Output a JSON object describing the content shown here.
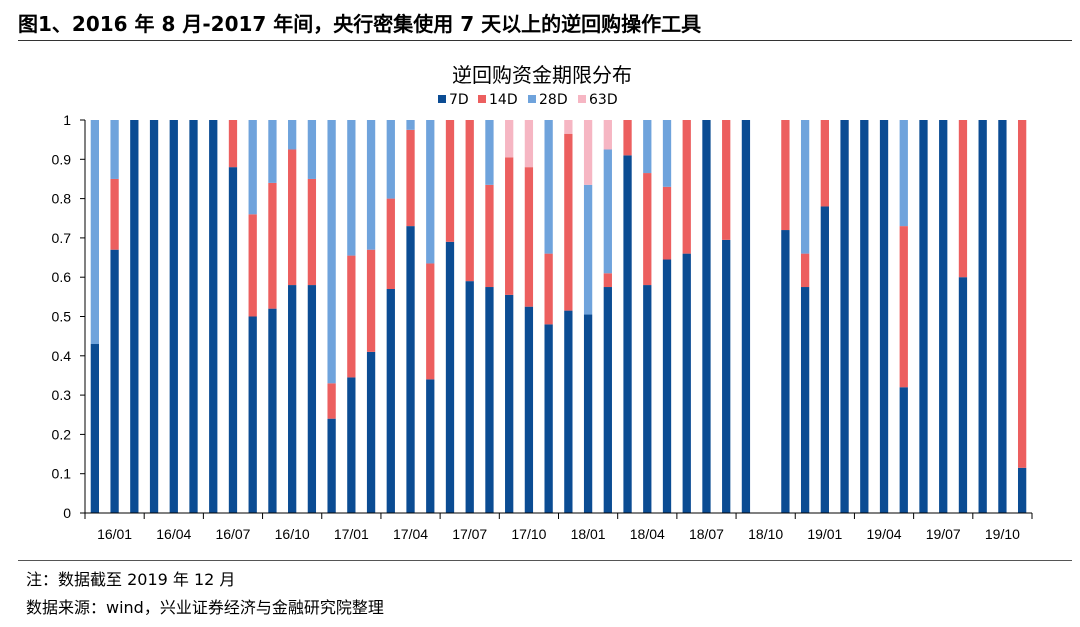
{
  "figure": {
    "title": "图1、2016 年 8 月-2017 年间，央行密集使用 7 天以上的逆回购操作工具",
    "note": "注：数据截至 2019 年 12 月",
    "source": "数据来源：wind，兴业证券经济与金融研究院整理"
  },
  "colors": {
    "7D": "#0b4c93",
    "14D": "#ec5f5f",
    "28D": "#6fa3dc",
    "63D": "#f6b6c3"
  },
  "chart_data": {
    "type": "bar",
    "stacked": true,
    "title": "逆回购资金期限分布",
    "legend_position": "top",
    "ylim": [
      0,
      1
    ],
    "yticks": [
      "0",
      "0.1",
      "0.2",
      "0.3",
      "0.4",
      "0.5",
      "0.6",
      "0.7",
      "0.8",
      "0.9",
      "1"
    ],
    "x_tick_labels": [
      {
        "label": "16/01",
        "index": 0
      },
      {
        "label": "16/04",
        "index": 3
      },
      {
        "label": "16/07",
        "index": 6
      },
      {
        "label": "16/10",
        "index": 9
      },
      {
        "label": "17/01",
        "index": 12
      },
      {
        "label": "17/04",
        "index": 15
      },
      {
        "label": "17/07",
        "index": 18
      },
      {
        "label": "17/10",
        "index": 21
      },
      {
        "label": "18/01",
        "index": 24
      },
      {
        "label": "18/04",
        "index": 27
      },
      {
        "label": "18/07",
        "index": 30
      },
      {
        "label": "18/10",
        "index": 33
      },
      {
        "label": "19/01",
        "index": 36
      },
      {
        "label": "19/04",
        "index": 39
      },
      {
        "label": "19/07",
        "index": 42
      },
      {
        "label": "19/10",
        "index": 45
      }
    ],
    "categories": [
      "2016-01",
      "2016-02",
      "2016-03",
      "2016-04",
      "2016-05",
      "2016-06",
      "2016-07",
      "2016-08",
      "2016-09",
      "2016-10",
      "2016-11",
      "2016-12",
      "2017-01",
      "2017-02",
      "2017-03",
      "2017-04",
      "2017-05",
      "2017-06",
      "2017-07",
      "2017-08",
      "2017-09",
      "2017-10",
      "2017-11",
      "2017-12",
      "2018-01",
      "2018-02",
      "2018-03",
      "2018-04",
      "2018-05",
      "2018-06",
      "2018-07",
      "2018-08",
      "2018-09",
      "2018-10",
      "2018-11",
      "2018-12",
      "2019-01",
      "2019-02",
      "2019-03",
      "2019-04",
      "2019-05",
      "2019-06",
      "2019-07",
      "2019-08",
      "2019-09",
      "2019-10",
      "2019-11",
      "2019-12"
    ],
    "series": [
      {
        "name": "7D",
        "values": [
          0.43,
          0.67,
          1,
          1,
          1,
          1,
          1,
          0.88,
          0.5,
          0.52,
          0.58,
          0.58,
          0.24,
          0.345,
          0.41,
          0.57,
          0.73,
          0.34,
          0.69,
          0.59,
          0.575,
          0.555,
          0.525,
          0.48,
          0.515,
          0.505,
          0.575,
          0.91,
          0.58,
          0.645,
          0.66,
          1,
          0.695,
          1,
          0,
          0.72,
          0.575,
          0.78,
          1,
          1,
          1,
          0.32,
          1,
          1,
          0.6,
          1,
          1,
          0.115
        ]
      },
      {
        "name": "14D",
        "values": [
          0,
          0.18,
          0,
          0,
          0,
          0,
          0,
          0.12,
          0.26,
          0.32,
          0.345,
          0.27,
          0.09,
          0.31,
          0.26,
          0.23,
          0.245,
          0.295,
          0.31,
          0.41,
          0.26,
          0.35,
          0.355,
          0.18,
          0.45,
          0,
          0.035,
          0.09,
          0.285,
          0.185,
          0.34,
          0,
          0.305,
          0,
          0,
          0.28,
          0.085,
          0.22,
          0,
          0,
          0,
          0.41,
          0,
          0,
          0.4,
          0,
          0,
          0.885
        ]
      },
      {
        "name": "28D",
        "values": [
          0.57,
          0.15,
          0,
          0,
          0,
          0,
          0,
          0,
          0.24,
          0.16,
          0.075,
          0.15,
          0.67,
          0.345,
          0.33,
          0.2,
          0.025,
          0.365,
          0,
          0,
          0.165,
          0,
          0,
          0.34,
          0,
          0.33,
          0.315,
          0,
          0.135,
          0.17,
          0,
          0,
          0,
          0,
          0,
          0,
          0.34,
          0,
          0,
          0,
          0,
          0.27,
          0,
          0,
          0,
          0,
          0,
          0
        ]
      },
      {
        "name": "63D",
        "values": [
          0,
          0,
          0,
          0,
          0,
          0,
          0,
          0,
          0,
          0,
          0,
          0,
          0,
          0,
          0,
          0,
          0,
          0,
          0,
          0,
          0,
          0.095,
          0.12,
          0,
          0.035,
          0.165,
          0.075,
          0,
          0,
          0,
          0,
          0,
          0,
          0,
          0,
          0,
          0,
          0,
          0,
          0,
          0,
          0,
          0,
          0,
          0,
          0,
          0,
          0
        ]
      }
    ]
  }
}
